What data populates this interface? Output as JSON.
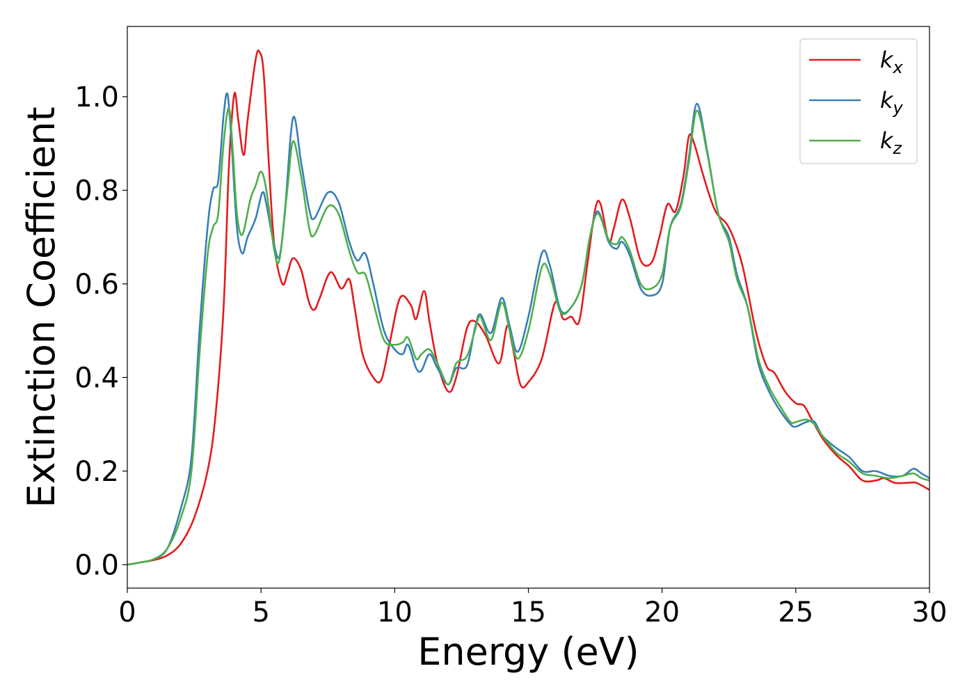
{
  "chart_data": {
    "type": "line",
    "xlabel": "Energy (eV)",
    "ylabel": "Extinction Coefficient",
    "xlim": [
      0,
      30
    ],
    "ylim": [
      -0.05,
      1.15
    ],
    "xticks": [
      0,
      5,
      10,
      15,
      20,
      25,
      30
    ],
    "yticks": [
      0.0,
      0.2,
      0.4,
      0.6,
      0.8,
      1.0
    ],
    "xtick_labels": [
      "0",
      "5",
      "10",
      "15",
      "20",
      "25",
      "30"
    ],
    "ytick_labels": [
      "0.0",
      "0.2",
      "0.4",
      "0.6",
      "0.8",
      "1.0"
    ],
    "grid": false,
    "legend_position": "top-right",
    "series": [
      {
        "name": "k_x",
        "label_base": "k",
        "label_sub": "x",
        "color": "#e41a1c",
        "points": [
          [
            0,
            0
          ],
          [
            0.5,
            0.005
          ],
          [
            1,
            0.01
          ],
          [
            1.5,
            0.02
          ],
          [
            2,
            0.045
          ],
          [
            2.5,
            0.1
          ],
          [
            3,
            0.2
          ],
          [
            3.3,
            0.32
          ],
          [
            3.6,
            0.55
          ],
          [
            3.8,
            0.85
          ],
          [
            4.0,
            1.005
          ],
          [
            4.15,
            0.95
          ],
          [
            4.35,
            0.875
          ],
          [
            4.5,
            0.95
          ],
          [
            4.8,
            1.08
          ],
          [
            4.95,
            1.095
          ],
          [
            5.1,
            1.05
          ],
          [
            5.3,
            0.85
          ],
          [
            5.5,
            0.68
          ],
          [
            5.8,
            0.6
          ],
          [
            6.0,
            0.625
          ],
          [
            6.2,
            0.655
          ],
          [
            6.5,
            0.63
          ],
          [
            6.8,
            0.56
          ],
          [
            7.0,
            0.545
          ],
          [
            7.2,
            0.57
          ],
          [
            7.6,
            0.625
          ],
          [
            8.0,
            0.59
          ],
          [
            8.3,
            0.61
          ],
          [
            8.5,
            0.55
          ],
          [
            8.8,
            0.45
          ],
          [
            9.2,
            0.4
          ],
          [
            9.5,
            0.395
          ],
          [
            9.8,
            0.47
          ],
          [
            10.2,
            0.57
          ],
          [
            10.6,
            0.555
          ],
          [
            10.8,
            0.525
          ],
          [
            11.1,
            0.585
          ],
          [
            11.3,
            0.52
          ],
          [
            11.6,
            0.43
          ],
          [
            12.0,
            0.37
          ],
          [
            12.3,
            0.4
          ],
          [
            12.7,
            0.505
          ],
          [
            13.0,
            0.52
          ],
          [
            13.4,
            0.49
          ],
          [
            13.9,
            0.43
          ],
          [
            14.2,
            0.51
          ],
          [
            14.4,
            0.47
          ],
          [
            14.7,
            0.385
          ],
          [
            15.0,
            0.39
          ],
          [
            15.5,
            0.44
          ],
          [
            16.0,
            0.56
          ],
          [
            16.3,
            0.525
          ],
          [
            16.6,
            0.53
          ],
          [
            16.9,
            0.52
          ],
          [
            17.2,
            0.64
          ],
          [
            17.5,
            0.76
          ],
          [
            17.7,
            0.77
          ],
          [
            18.0,
            0.69
          ],
          [
            18.2,
            0.72
          ],
          [
            18.5,
            0.78
          ],
          [
            18.8,
            0.74
          ],
          [
            19.2,
            0.65
          ],
          [
            19.6,
            0.645
          ],
          [
            19.9,
            0.7
          ],
          [
            20.2,
            0.77
          ],
          [
            20.5,
            0.755
          ],
          [
            20.8,
            0.83
          ],
          [
            21.0,
            0.915
          ],
          [
            21.2,
            0.9
          ],
          [
            21.6,
            0.82
          ],
          [
            22.0,
            0.755
          ],
          [
            22.5,
            0.72
          ],
          [
            23.0,
            0.64
          ],
          [
            23.5,
            0.5
          ],
          [
            23.9,
            0.425
          ],
          [
            24.2,
            0.41
          ],
          [
            24.6,
            0.37
          ],
          [
            25.0,
            0.345
          ],
          [
            25.3,
            0.34
          ],
          [
            25.6,
            0.31
          ],
          [
            26.0,
            0.27
          ],
          [
            26.5,
            0.235
          ],
          [
            27.0,
            0.21
          ],
          [
            27.5,
            0.18
          ],
          [
            28.0,
            0.18
          ],
          [
            28.3,
            0.185
          ],
          [
            28.7,
            0.175
          ],
          [
            29.2,
            0.175
          ],
          [
            29.5,
            0.175
          ],
          [
            30,
            0.16
          ]
        ]
      },
      {
        "name": "k_y",
        "label_base": "k",
        "label_sub": "y",
        "color": "#377eb8",
        "points": [
          [
            0,
            0
          ],
          [
            0.5,
            0.005
          ],
          [
            1,
            0.012
          ],
          [
            1.5,
            0.035
          ],
          [
            2,
            0.12
          ],
          [
            2.4,
            0.23
          ],
          [
            2.7,
            0.5
          ],
          [
            3.0,
            0.72
          ],
          [
            3.2,
            0.8
          ],
          [
            3.4,
            0.82
          ],
          [
            3.6,
            0.96
          ],
          [
            3.75,
            1.005
          ],
          [
            3.9,
            0.9
          ],
          [
            4.1,
            0.72
          ],
          [
            4.3,
            0.665
          ],
          [
            4.5,
            0.7
          ],
          [
            4.8,
            0.74
          ],
          [
            5.05,
            0.795
          ],
          [
            5.2,
            0.77
          ],
          [
            5.5,
            0.68
          ],
          [
            5.7,
            0.66
          ],
          [
            5.9,
            0.76
          ],
          [
            6.2,
            0.955
          ],
          [
            6.5,
            0.86
          ],
          [
            6.8,
            0.76
          ],
          [
            7.0,
            0.74
          ],
          [
            7.5,
            0.795
          ],
          [
            7.9,
            0.775
          ],
          [
            8.3,
            0.69
          ],
          [
            8.6,
            0.65
          ],
          [
            8.9,
            0.665
          ],
          [
            9.2,
            0.6
          ],
          [
            9.6,
            0.5
          ],
          [
            10.0,
            0.46
          ],
          [
            10.3,
            0.45
          ],
          [
            10.5,
            0.47
          ],
          [
            10.8,
            0.42
          ],
          [
            11.0,
            0.415
          ],
          [
            11.3,
            0.45
          ],
          [
            11.6,
            0.42
          ],
          [
            12.0,
            0.385
          ],
          [
            12.3,
            0.42
          ],
          [
            12.7,
            0.425
          ],
          [
            13.0,
            0.505
          ],
          [
            13.2,
            0.535
          ],
          [
            13.6,
            0.495
          ],
          [
            14.0,
            0.57
          ],
          [
            14.3,
            0.51
          ],
          [
            14.6,
            0.455
          ],
          [
            15.0,
            0.53
          ],
          [
            15.5,
            0.665
          ],
          [
            15.8,
            0.64
          ],
          [
            16.2,
            0.545
          ],
          [
            16.6,
            0.55
          ],
          [
            17.0,
            0.6
          ],
          [
            17.3,
            0.7
          ],
          [
            17.6,
            0.755
          ],
          [
            18.0,
            0.69
          ],
          [
            18.3,
            0.675
          ],
          [
            18.5,
            0.69
          ],
          [
            18.8,
            0.66
          ],
          [
            19.2,
            0.59
          ],
          [
            19.6,
            0.575
          ],
          [
            20.0,
            0.6
          ],
          [
            20.3,
            0.72
          ],
          [
            20.7,
            0.77
          ],
          [
            21.0,
            0.87
          ],
          [
            21.3,
            0.985
          ],
          [
            21.7,
            0.88
          ],
          [
            22.1,
            0.75
          ],
          [
            22.5,
            0.7
          ],
          [
            22.8,
            0.62
          ],
          [
            23.2,
            0.55
          ],
          [
            23.6,
            0.43
          ],
          [
            24.0,
            0.37
          ],
          [
            24.4,
            0.33
          ],
          [
            24.8,
            0.3
          ],
          [
            25.0,
            0.295
          ],
          [
            25.4,
            0.305
          ],
          [
            25.7,
            0.305
          ],
          [
            26.0,
            0.275
          ],
          [
            26.5,
            0.25
          ],
          [
            27.0,
            0.23
          ],
          [
            27.5,
            0.2
          ],
          [
            28.0,
            0.2
          ],
          [
            28.5,
            0.19
          ],
          [
            29.0,
            0.19
          ],
          [
            29.4,
            0.205
          ],
          [
            29.7,
            0.195
          ],
          [
            30,
            0.185
          ]
        ]
      },
      {
        "name": "k_z",
        "label_base": "k",
        "label_sub": "z",
        "color": "#4daf4a",
        "points": [
          [
            0,
            0
          ],
          [
            0.5,
            0.005
          ],
          [
            1,
            0.012
          ],
          [
            1.5,
            0.035
          ],
          [
            2,
            0.1
          ],
          [
            2.4,
            0.2
          ],
          [
            2.7,
            0.45
          ],
          [
            3.0,
            0.66
          ],
          [
            3.2,
            0.72
          ],
          [
            3.4,
            0.75
          ],
          [
            3.6,
            0.9
          ],
          [
            3.8,
            0.975
          ],
          [
            3.95,
            0.88
          ],
          [
            4.1,
            0.75
          ],
          [
            4.3,
            0.705
          ],
          [
            4.6,
            0.78
          ],
          [
            4.8,
            0.81
          ],
          [
            5.0,
            0.84
          ],
          [
            5.2,
            0.8
          ],
          [
            5.5,
            0.67
          ],
          [
            5.7,
            0.655
          ],
          [
            6.0,
            0.81
          ],
          [
            6.2,
            0.905
          ],
          [
            6.5,
            0.83
          ],
          [
            6.8,
            0.72
          ],
          [
            7.0,
            0.705
          ],
          [
            7.5,
            0.765
          ],
          [
            7.9,
            0.75
          ],
          [
            8.3,
            0.67
          ],
          [
            8.6,
            0.625
          ],
          [
            8.9,
            0.62
          ],
          [
            9.2,
            0.56
          ],
          [
            9.6,
            0.48
          ],
          [
            10.0,
            0.47
          ],
          [
            10.3,
            0.475
          ],
          [
            10.5,
            0.485
          ],
          [
            10.8,
            0.44
          ],
          [
            11.0,
            0.45
          ],
          [
            11.3,
            0.46
          ],
          [
            11.6,
            0.43
          ],
          [
            12.0,
            0.385
          ],
          [
            12.3,
            0.43
          ],
          [
            12.7,
            0.445
          ],
          [
            13.0,
            0.5
          ],
          [
            13.2,
            0.53
          ],
          [
            13.6,
            0.48
          ],
          [
            14.0,
            0.56
          ],
          [
            14.3,
            0.5
          ],
          [
            14.6,
            0.44
          ],
          [
            15.0,
            0.5
          ],
          [
            15.5,
            0.635
          ],
          [
            15.8,
            0.62
          ],
          [
            16.2,
            0.54
          ],
          [
            16.6,
            0.55
          ],
          [
            17.0,
            0.6
          ],
          [
            17.3,
            0.7
          ],
          [
            17.6,
            0.75
          ],
          [
            18.0,
            0.695
          ],
          [
            18.3,
            0.685
          ],
          [
            18.5,
            0.7
          ],
          [
            18.8,
            0.67
          ],
          [
            19.2,
            0.6
          ],
          [
            19.6,
            0.59
          ],
          [
            20.0,
            0.62
          ],
          [
            20.3,
            0.72
          ],
          [
            20.7,
            0.765
          ],
          [
            21.0,
            0.86
          ],
          [
            21.3,
            0.97
          ],
          [
            21.7,
            0.875
          ],
          [
            22.1,
            0.75
          ],
          [
            22.5,
            0.69
          ],
          [
            22.8,
            0.61
          ],
          [
            23.2,
            0.55
          ],
          [
            23.6,
            0.44
          ],
          [
            24.0,
            0.38
          ],
          [
            24.4,
            0.34
          ],
          [
            24.8,
            0.305
          ],
          [
            25.0,
            0.305
          ],
          [
            25.4,
            0.31
          ],
          [
            25.7,
            0.3
          ],
          [
            26.0,
            0.275
          ],
          [
            26.5,
            0.24
          ],
          [
            27.0,
            0.22
          ],
          [
            27.5,
            0.195
          ],
          [
            28.0,
            0.19
          ],
          [
            28.5,
            0.185
          ],
          [
            29.0,
            0.19
          ],
          [
            29.4,
            0.195
          ],
          [
            29.7,
            0.185
          ],
          [
            30,
            0.18
          ]
        ]
      }
    ]
  }
}
